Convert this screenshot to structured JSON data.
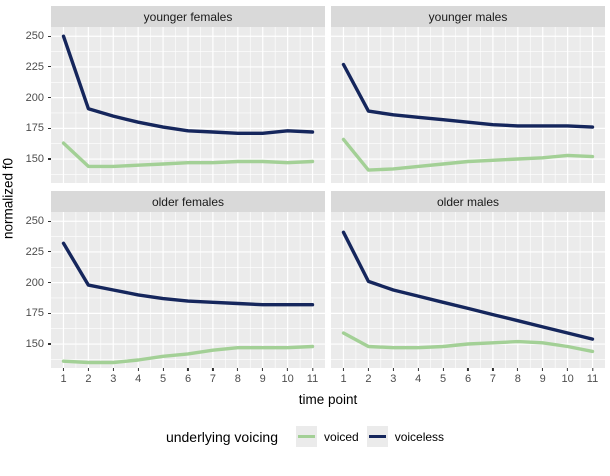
{
  "chart_data": {
    "type": "line",
    "title": "",
    "xlabel": "time point",
    "ylabel": "normalized f0",
    "x": [
      1,
      2,
      3,
      4,
      5,
      6,
      7,
      8,
      9,
      10,
      11
    ],
    "xlim": [
      0.5,
      11.5
    ],
    "ylim": [
      130.5,
      257.5
    ],
    "x_major_ticks": [
      1,
      2,
      3,
      4,
      5,
      6,
      7,
      8,
      9,
      10,
      11
    ],
    "x_minor_ticks": [
      1.5,
      2.5,
      3.5,
      4.5,
      5.5,
      6.5,
      7.5,
      8.5,
      9.5,
      10.5
    ],
    "y_major_ticks": [
      150,
      175,
      200,
      225,
      250
    ],
    "y_minor_ticks": [
      137.5,
      162.5,
      187.5,
      212.5,
      237.5
    ],
    "grid": true,
    "legend": {
      "title": "underlying voicing",
      "position": "bottom",
      "entries": [
        {
          "label": "voiced",
          "color": "#a3d096"
        },
        {
          "label": "voiceless",
          "color": "#15265c"
        }
      ]
    },
    "facets": [
      {
        "label": "younger females",
        "series": [
          {
            "name": "voiced",
            "values": [
              163,
              144,
              144,
              145,
              146,
              147,
              147,
              148,
              148,
              147,
              148
            ]
          },
          {
            "name": "voiceless",
            "values": [
              250,
              191,
              185,
              180,
              176,
              173,
              172,
              171,
              171,
              173,
              172
            ]
          }
        ]
      },
      {
        "label": "younger males",
        "series": [
          {
            "name": "voiced",
            "values": [
              166,
              141,
              142,
              144,
              146,
              148,
              149,
              150,
              151,
              153,
              152
            ]
          },
          {
            "name": "voiceless",
            "values": [
              227,
              189,
              186,
              184,
              182,
              180,
              178,
              177,
              177,
              177,
              176
            ]
          }
        ]
      },
      {
        "label": "older females",
        "series": [
          {
            "name": "voiced",
            "values": [
              136,
              135,
              135,
              137,
              140,
              142,
              145,
              147,
              147,
              147,
              148
            ]
          },
          {
            "name": "voiceless",
            "values": [
              232,
              198,
              194,
              190,
              187,
              185,
              184,
              183,
              182,
              182,
              182
            ]
          }
        ]
      },
      {
        "label": "older males",
        "series": [
          {
            "name": "voiced",
            "values": [
              159,
              148,
              147,
              147,
              148,
              150,
              151,
              152,
              151,
              148,
              144
            ]
          },
          {
            "name": "voiceless",
            "values": [
              241,
              201,
              194,
              189,
              184,
              179,
              174,
              169,
              164,
              159,
              154
            ]
          }
        ]
      }
    ],
    "colors": {
      "panel_bg": "#ebebeb",
      "strip_bg": "#d9d9d9",
      "grid": "#ffffff",
      "tick_text": "#4d4d4d",
      "voiced": "#a3d096",
      "voiceless": "#15265c"
    }
  }
}
